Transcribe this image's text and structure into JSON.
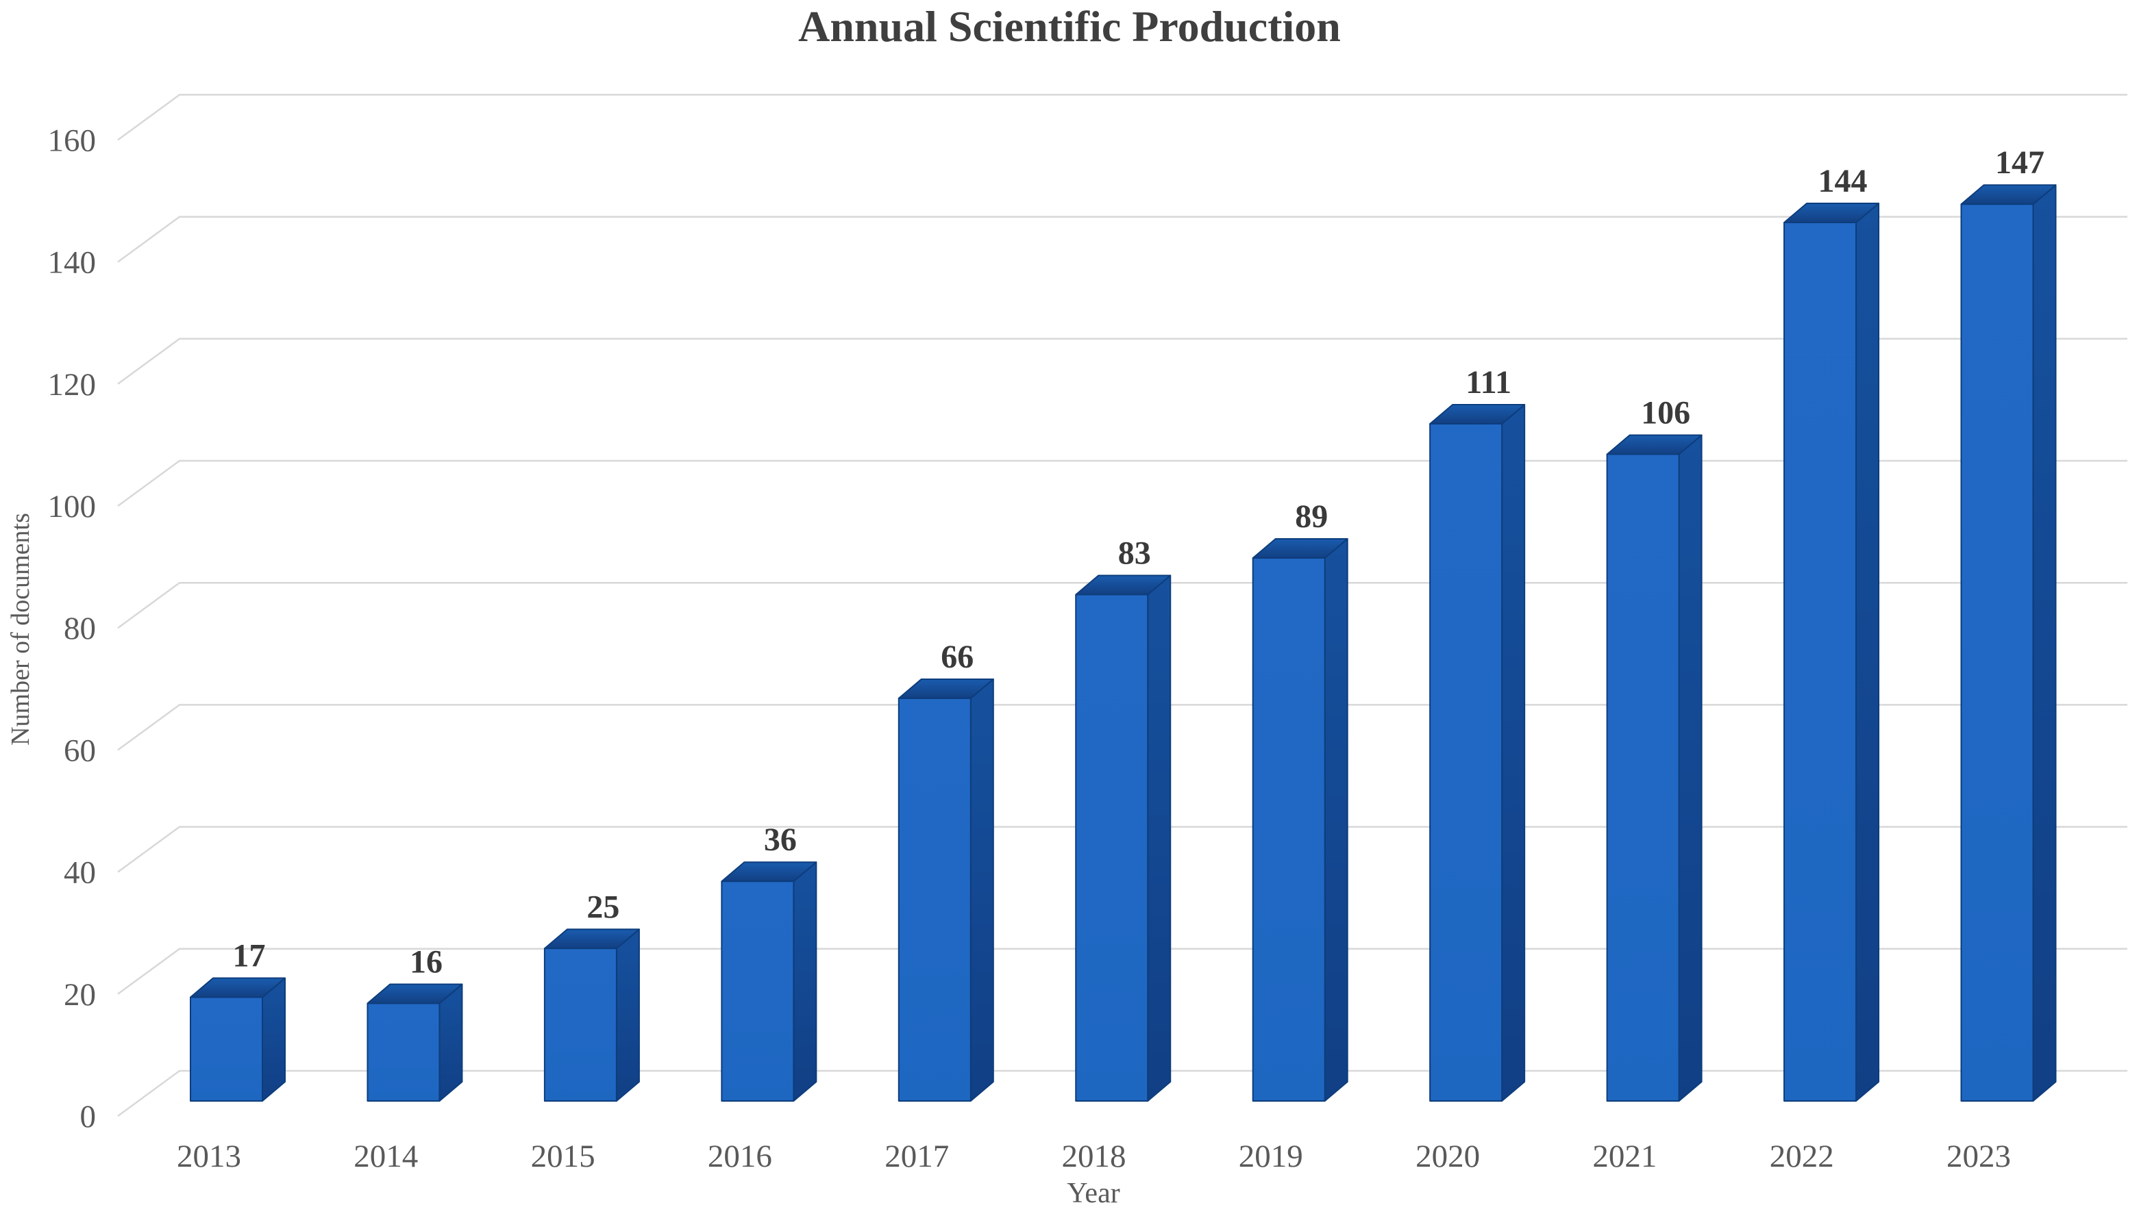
{
  "chart_data": {
    "type": "bar",
    "style": "3d-column",
    "title": "Annual Scientific Production",
    "xlabel": "Year",
    "ylabel": "Number of documents",
    "categories": [
      "2013",
      "2014",
      "2015",
      "2016",
      "2017",
      "2018",
      "2019",
      "2020",
      "2021",
      "2022",
      "2023"
    ],
    "values": [
      17,
      16,
      25,
      36,
      66,
      83,
      89,
      111,
      106,
      144,
      147
    ],
    "ylim": [
      0,
      160
    ],
    "ytick_step": 20,
    "grid": true,
    "legend_position": "none",
    "colors": {
      "bar_front": "#1E67C1",
      "bar_front_light": "#2269C6",
      "bar_top": "#1A5CAE",
      "bar_top_dark": "#123F82",
      "bar_side": "#16519E",
      "bar_side_dark": "#113F85",
      "bar_edge": "#0D3D7C",
      "gridline": "#D8D8D8",
      "tick_text": "#595959",
      "axis_title_text": "#595959",
      "value_text": "#3A3A3A",
      "title_text": "#3F3F3F",
      "background": "#FFFFFF"
    }
  }
}
